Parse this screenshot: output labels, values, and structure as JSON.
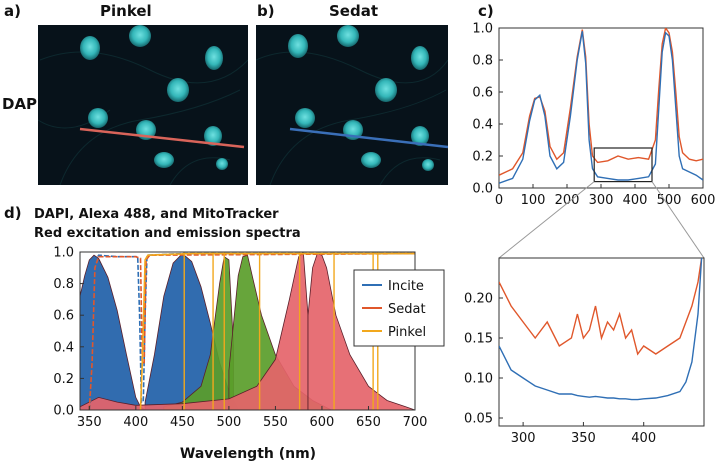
{
  "row_label": "DAPI",
  "panels": {
    "a": {
      "label": "a)",
      "title": "Pinkel"
    },
    "b": {
      "label": "b)",
      "title": "Sedat"
    },
    "c": {
      "label": "c)"
    },
    "d": {
      "label": "d)",
      "title_line1": "DAPI, Alexa 488, and MitoTracker",
      "title_line2": "Red excitation and emission spectra"
    }
  },
  "colors": {
    "incite": "#2f6fb5",
    "sedat": "#e0572b",
    "pinkel": "#f2a81d",
    "dapi_fill": "#1f5fa8",
    "alexa_fill": "#5a9d2a",
    "mito_fill": "#e5646a",
    "profile_pinkel": "#d9645a",
    "profile_sedat": "#3a6fb8",
    "cell_bg": "#07121a",
    "nucleus": "#39c2c2"
  },
  "chart_data": [
    {
      "id": "c_top",
      "type": "line",
      "xlim": [
        0,
        600
      ],
      "ylim": [
        0,
        1.0
      ],
      "xticks": [
        0,
        100,
        200,
        300,
        400,
        500,
        600
      ],
      "yticks": [
        "0.0",
        "0.2",
        "0.4",
        "0.6",
        "0.8",
        "1.0"
      ],
      "series": [
        {
          "x": [
            0,
            40,
            70,
            90,
            105,
            120,
            135,
            150,
            170,
            190,
            210,
            230,
            245,
            255,
            265,
            275,
            290,
            320,
            350,
            380,
            410,
            440,
            460,
            470,
            480,
            490,
            500,
            510,
            520,
            530,
            540,
            560,
            580,
            600
          ],
          "incite": [
            0.03,
            0.06,
            0.18,
            0.42,
            0.55,
            0.58,
            0.45,
            0.2,
            0.12,
            0.16,
            0.45,
            0.8,
            0.98,
            0.78,
            0.3,
            0.12,
            0.07,
            0.06,
            0.05,
            0.05,
            0.06,
            0.07,
            0.15,
            0.5,
            0.85,
            0.97,
            0.95,
            0.8,
            0.5,
            0.2,
            0.12,
            0.1,
            0.08,
            0.05
          ],
          "sedat": [
            0.08,
            0.12,
            0.22,
            0.45,
            0.56,
            0.57,
            0.48,
            0.26,
            0.18,
            0.22,
            0.5,
            0.82,
            0.99,
            0.82,
            0.4,
            0.2,
            0.16,
            0.17,
            0.2,
            0.18,
            0.19,
            0.18,
            0.3,
            0.62,
            0.9,
            1.0,
            0.97,
            0.85,
            0.6,
            0.32,
            0.22,
            0.18,
            0.17,
            0.18
          ]
        }
      ]
    },
    {
      "id": "c_zoom",
      "type": "line",
      "xlim": [
        280,
        450
      ],
      "ylim": [
        0.04,
        0.25
      ],
      "xticks": [
        300,
        350,
        400
      ],
      "yticks": [
        "0.05",
        "0.10",
        "0.15",
        "0.20"
      ],
      "series": [
        {
          "x": [
            280,
            290,
            300,
            310,
            320,
            330,
            340,
            345,
            350,
            355,
            360,
            365,
            370,
            375,
            380,
            385,
            390,
            395,
            400,
            410,
            420,
            430,
            435,
            440,
            445,
            448
          ],
          "sedat": [
            0.22,
            0.19,
            0.17,
            0.15,
            0.17,
            0.14,
            0.15,
            0.18,
            0.15,
            0.16,
            0.19,
            0.15,
            0.17,
            0.16,
            0.18,
            0.15,
            0.16,
            0.13,
            0.14,
            0.13,
            0.14,
            0.15,
            0.17,
            0.19,
            0.22,
            0.25
          ],
          "incite": [
            0.14,
            0.11,
            0.1,
            0.09,
            0.085,
            0.08,
            0.08,
            0.078,
            0.077,
            0.076,
            0.077,
            0.076,
            0.075,
            0.075,
            0.074,
            0.074,
            0.073,
            0.073,
            0.074,
            0.075,
            0.078,
            0.083,
            0.095,
            0.12,
            0.18,
            0.25
          ]
        }
      ]
    },
    {
      "id": "d",
      "type": "area",
      "xlabel": "Wavelength (nm)",
      "xlim": [
        340,
        700
      ],
      "ylim": [
        0,
        1.0
      ],
      "xticks": [
        350,
        400,
        450,
        500,
        550,
        600,
        650,
        700
      ],
      "yticks": [
        "0.0",
        "0.2",
        "0.4",
        "0.6",
        "0.8",
        "1.0"
      ],
      "legend": [
        "Incite",
        "Sedat",
        "Pinkel"
      ],
      "legend_position": "right",
      "filled_spectra": [
        {
          "name": "dapi_excitation",
          "color": "dapi_fill",
          "x": [
            340,
            345,
            350,
            355,
            360,
            370,
            380,
            390,
            400,
            405,
            410
          ],
          "y": [
            0.72,
            0.85,
            0.95,
            0.98,
            0.96,
            0.84,
            0.63,
            0.35,
            0.08,
            0.02,
            0.0
          ]
        },
        {
          "name": "dapi_emission",
          "color": "dapi_fill",
          "x": [
            410,
            420,
            430,
            440,
            450,
            460,
            470,
            480,
            490,
            500,
            510
          ],
          "y": [
            0.05,
            0.35,
            0.72,
            0.93,
            0.99,
            0.94,
            0.78,
            0.55,
            0.3,
            0.12,
            0.0
          ]
        },
        {
          "name": "alexa_excitation",
          "color": "alexa_fill",
          "x": [
            430,
            450,
            470,
            480,
            490,
            495,
            500,
            505
          ],
          "y": [
            0.02,
            0.05,
            0.15,
            0.35,
            0.8,
            0.97,
            0.95,
            0.4
          ]
        },
        {
          "name": "alexa_emission",
          "color": "alexa_fill",
          "x": [
            500,
            510,
            515,
            520,
            525,
            535,
            550,
            570,
            590,
            610
          ],
          "y": [
            0.25,
            0.85,
            0.97,
            0.98,
            0.85,
            0.6,
            0.35,
            0.15,
            0.06,
            0.0
          ]
        },
        {
          "name": "mito_excitation",
          "color": "mito_fill",
          "x": [
            340,
            360,
            380,
            400,
            450,
            500,
            530,
            550,
            565,
            575,
            580,
            585
          ],
          "y": [
            0.02,
            0.08,
            0.05,
            0.03,
            0.04,
            0.07,
            0.15,
            0.32,
            0.7,
            0.97,
            1.0,
            0.6
          ]
        },
        {
          "name": "mito_emission",
          "color": "mito_fill",
          "x": [
            585,
            590,
            595,
            600,
            605,
            615,
            630,
            650,
            670,
            690,
            700
          ],
          "y": [
            0.6,
            0.9,
            0.99,
            0.98,
            0.9,
            0.6,
            0.35,
            0.15,
            0.06,
            0.02,
            0.0
          ]
        }
      ],
      "filter_edges": [
        {
          "series": "Incite",
          "x": [
            350,
            352,
            354,
            356,
            358,
            360,
            380,
            395,
            402,
            404,
            406,
            408,
            410,
            412,
            450,
            700
          ],
          "y": [
            0,
            0.1,
            0.5,
            0.9,
            0.96,
            0.98,
            0.97,
            0.97,
            0.97,
            0.6,
            0.05,
            0.05,
            0.6,
            0.98,
            0.99,
            0.99
          ]
        },
        {
          "series": "Sedat",
          "x": [
            350,
            353,
            356,
            360,
            400,
            405,
            407,
            409,
            411,
            415,
            700
          ],
          "y": [
            0,
            0.3,
            0.9,
            0.97,
            0.97,
            0.96,
            0.3,
            0.3,
            0.95,
            0.98,
            0.99
          ]
        },
        {
          "series": "Pinkel",
          "x": [
            405,
            407,
            410,
            413,
            460,
            700
          ],
          "y": [
            0.0,
            0.3,
            0.95,
            0.98,
            0.99,
            0.99
          ]
        }
      ],
      "pinkel_lines": [
        452,
        483,
        495,
        533,
        576,
        613,
        655,
        660
      ]
    }
  ]
}
